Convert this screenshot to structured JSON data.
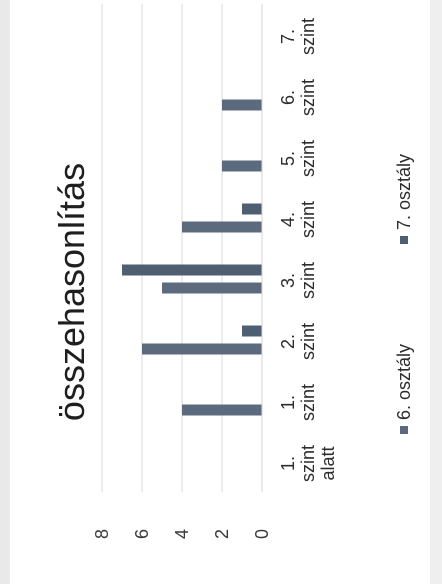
{
  "chart_data": {
    "type": "bar",
    "orientation": "vertical",
    "title": "összehasonlítás",
    "categories": [
      [
        "1.",
        "szint",
        "alatt"
      ],
      [
        "1.",
        "szint"
      ],
      [
        "2.",
        "szint"
      ],
      [
        "3.",
        "szint"
      ],
      [
        "4.",
        "szint"
      ],
      [
        "5.",
        "szint"
      ],
      [
        "6.",
        "szint"
      ],
      [
        "7.",
        "szint"
      ]
    ],
    "series": [
      {
        "name": "6. osztály",
        "color": "#5b6b7d",
        "values": [
          0,
          4,
          6,
          5,
          4,
          2,
          2,
          0
        ]
      },
      {
        "name": "7. osztály",
        "color": "#4f5f72",
        "values": [
          0,
          0,
          1,
          7,
          1,
          0,
          0,
          0
        ]
      }
    ],
    "ylim": [
      0,
      8
    ],
    "yticks": [
      0,
      2,
      4,
      6,
      8
    ],
    "grid": true,
    "legend": "bottom",
    "xlabel": "",
    "ylabel": ""
  }
}
